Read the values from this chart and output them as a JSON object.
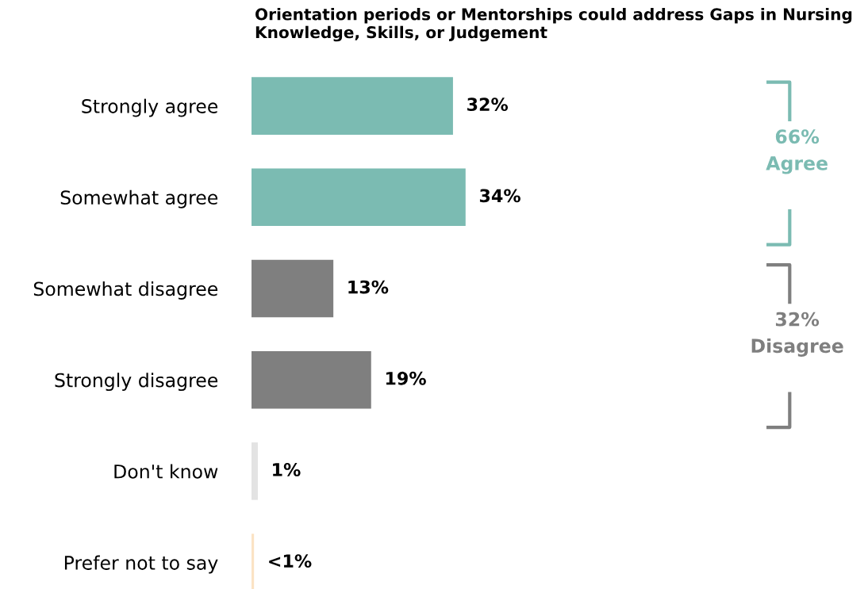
{
  "chart_data": {
    "type": "bar",
    "orientation": "horizontal",
    "title": "Orientation periods or Mentorships could address Gaps in Nursing Knowledge, Skills, or Judgement",
    "categories": [
      "Strongly agree",
      "Somewhat agree",
      "Somewhat disagree",
      "Strongly disagree",
      "Don't know",
      "Prefer not to say"
    ],
    "values": [
      32,
      34,
      13,
      19,
      1,
      0.4
    ],
    "value_labels": [
      "32%",
      "34%",
      "13%",
      "19%",
      "1%",
      "<1%"
    ],
    "colors": [
      "#7bbbb2",
      "#7bbbb2",
      "#7f7f7f",
      "#7f7f7f",
      "#e3e3e3",
      "#fbe3c4"
    ],
    "annotations": [
      "66%\nAgree",
      "32%\nDisagree"
    ]
  }
}
